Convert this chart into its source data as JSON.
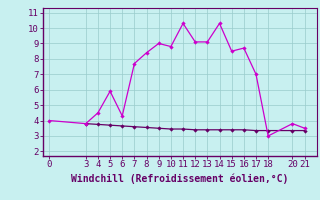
{
  "xlabel": "Windchill (Refroidissement éolien,°C)",
  "bg_color": "#c8f0f0",
  "line1_color": "#cc00cc",
  "line2_color": "#660066",
  "grid_color": "#99cccc",
  "xlim": [
    -0.5,
    22
  ],
  "ylim": [
    1.7,
    11.3
  ],
  "xticks": [
    0,
    3,
    4,
    5,
    6,
    7,
    8,
    9,
    10,
    11,
    12,
    13,
    14,
    15,
    16,
    17,
    18,
    20,
    21
  ],
  "yticks": [
    2,
    3,
    4,
    5,
    6,
    7,
    8,
    9,
    10,
    11
  ],
  "line1_x": [
    0,
    3,
    4,
    5,
    6,
    7,
    8,
    9,
    10,
    11,
    12,
    13,
    14,
    15,
    16,
    17,
    18,
    20,
    21
  ],
  "line1_y": [
    4.0,
    3.8,
    4.5,
    5.9,
    4.3,
    7.7,
    8.4,
    9.0,
    8.8,
    10.3,
    9.1,
    9.1,
    10.3,
    8.5,
    8.7,
    7.0,
    3.0,
    3.8,
    3.5
  ],
  "line2_x": [
    3,
    4,
    5,
    6,
    7,
    8,
    9,
    10,
    11,
    12,
    13,
    14,
    15,
    16,
    17,
    18,
    20,
    21
  ],
  "line2_y": [
    3.8,
    3.75,
    3.7,
    3.65,
    3.6,
    3.55,
    3.5,
    3.45,
    3.45,
    3.4,
    3.4,
    3.4,
    3.4,
    3.4,
    3.35,
    3.35,
    3.35,
    3.35
  ],
  "marker": "D",
  "marker_size": 2.2,
  "line_width": 0.9,
  "tick_fontsize": 6.5,
  "xlabel_fontsize": 7.0
}
